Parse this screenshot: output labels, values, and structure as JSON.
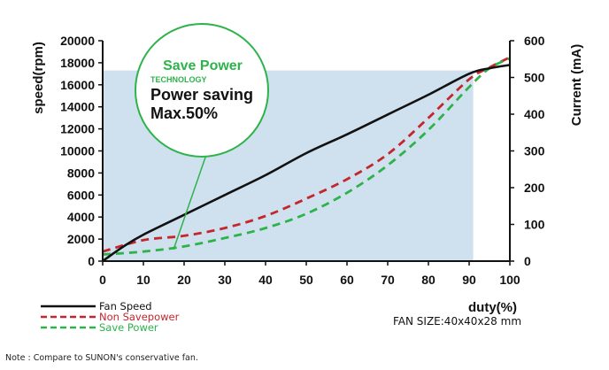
{
  "chart_data": {
    "type": "line",
    "xlabel": "duty(%)",
    "ylabel_left": "speed(rpm)",
    "ylabel_right": "Current (mA)",
    "x_ticks": [
      0,
      10,
      20,
      30,
      40,
      50,
      60,
      70,
      80,
      90,
      100
    ],
    "y_left_ticks": [
      0,
      2000,
      4000,
      6000,
      8000,
      10000,
      12000,
      14000,
      16000,
      18000,
      20000
    ],
    "y_right_ticks": [
      0,
      100,
      200,
      300,
      400,
      500,
      600
    ],
    "xlim": [
      0,
      100
    ],
    "ylim_left": [
      0,
      20000
    ],
    "ylim_right": [
      0,
      600
    ],
    "shaded_region_x": [
      0,
      91
    ],
    "shaded_region_y": [
      0,
      17300
    ],
    "series": [
      {
        "name": "Fan Speed",
        "axis": "left",
        "style": "solid",
        "color": "#111111",
        "points": [
          [
            0,
            0
          ],
          [
            5,
            1300
          ],
          [
            10,
            2400
          ],
          [
            20,
            4200
          ],
          [
            30,
            6000
          ],
          [
            40,
            7800
          ],
          [
            50,
            9800
          ],
          [
            60,
            11500
          ],
          [
            70,
            13300
          ],
          [
            80,
            15100
          ],
          [
            90,
            17000
          ],
          [
            95,
            17500
          ],
          [
            100,
            17800
          ]
        ]
      },
      {
        "name": "Non Savepower",
        "axis": "right",
        "style": "dashed",
        "color": "#c4262e",
        "points": [
          [
            0,
            26
          ],
          [
            10,
            57
          ],
          [
            20,
            69
          ],
          [
            30,
            90
          ],
          [
            40,
            123
          ],
          [
            50,
            170
          ],
          [
            60,
            223
          ],
          [
            70,
            291
          ],
          [
            80,
            390
          ],
          [
            90,
            495
          ],
          [
            95,
            527
          ],
          [
            100,
            555
          ]
        ]
      },
      {
        "name": "Save Power",
        "axis": "right",
        "style": "dashed",
        "color": "#2db34a",
        "points": [
          [
            0,
            18
          ],
          [
            10,
            26
          ],
          [
            20,
            40
          ],
          [
            30,
            63
          ],
          [
            40,
            90
          ],
          [
            50,
            129
          ],
          [
            60,
            186
          ],
          [
            70,
            261
          ],
          [
            80,
            357
          ],
          [
            90,
            474
          ],
          [
            95,
            525
          ],
          [
            100,
            552
          ]
        ]
      }
    ],
    "legend": [
      "Fan Speed",
      "Non Savepower",
      "Save Power"
    ],
    "legend_position": "bottom-left"
  },
  "badge": {
    "title": "Save Power",
    "subtitle": "TECHNOLOGY",
    "line1": "Power saving",
    "line2": "Max.50%",
    "color": "#2db34a"
  },
  "fan_size": "FAN SIZE:40x40x28 mm",
  "note": "Note : Compare to SUNON's conservative fan."
}
